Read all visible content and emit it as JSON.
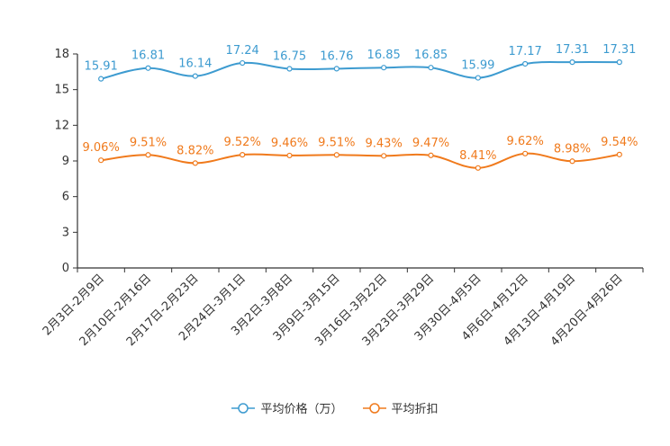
{
  "chart_data": {
    "type": "line",
    "title": "",
    "xlabel": "",
    "ylabel": "",
    "ylim": [
      0,
      18
    ],
    "yticks": [
      0,
      3,
      6,
      9,
      12,
      15,
      18
    ],
    "grid": false,
    "legend_position": "bottom-center",
    "categories": [
      "2月3日-2月9日",
      "2月10日-2月16日",
      "2月17日-2月23日",
      "2月24日-3月1日",
      "3月2日-3月8日",
      "3月9日-3月15日",
      "3月16日-3月22日",
      "3月23日-3月29日",
      "3月30日-4月5日",
      "4月6日-4月12日",
      "4月13日-4月19日",
      "4月20日-4月26日"
    ],
    "series": [
      {
        "name": "平均价格（万）",
        "color": "#3d9bd0",
        "values": [
          15.91,
          16.81,
          16.14,
          17.24,
          16.75,
          16.76,
          16.85,
          16.85,
          15.99,
          17.17,
          17.31,
          17.31
        ],
        "labels": [
          "15.91",
          "16.81",
          "16.14",
          "17.24",
          "16.75",
          "16.76",
          "16.85",
          "16.85",
          "15.99",
          "17.17",
          "17.31",
          "17.31"
        ]
      },
      {
        "name": "平均折扣",
        "color": "#f07a1c",
        "values": [
          9.06,
          9.51,
          8.82,
          9.52,
          9.46,
          9.51,
          9.43,
          9.47,
          8.41,
          9.62,
          8.98,
          9.54
        ],
        "labels": [
          "9.06%",
          "9.51%",
          "8.82%",
          "9.52%",
          "9.46%",
          "9.51%",
          "9.43%",
          "9.47%",
          "8.41%",
          "9.62%",
          "8.98%",
          "9.54%"
        ]
      }
    ]
  }
}
